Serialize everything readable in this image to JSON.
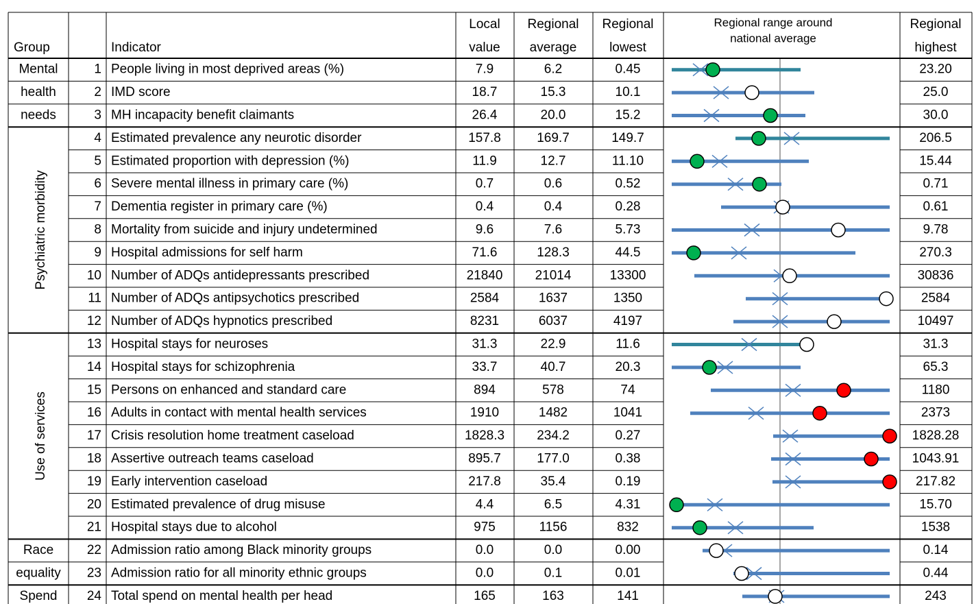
{
  "header": {
    "group": "Group",
    "indicator": "Indicator",
    "local_value": [
      "Local",
      "value"
    ],
    "regional_average": [
      "Regional",
      "average"
    ],
    "regional_lowest": [
      "Regional",
      "lowest"
    ],
    "chart": [
      "Regional range around",
      "national average"
    ],
    "regional_highest": [
      "Regional",
      "highest"
    ]
  },
  "groups": [
    [
      "Mental",
      "health",
      "needs"
    ],
    [
      "Psychiatric morbidity"
    ],
    [
      "Use of services"
    ],
    [
      "Race",
      "equality"
    ],
    [
      "Spend"
    ]
  ],
  "rows": [
    [
      "1",
      "People living in most deprived areas (%)",
      "7.9",
      "6.2",
      "0.45",
      "23.20"
    ],
    [
      "2",
      "IMD score",
      "18.7",
      "15.3",
      "10.1",
      "25.0"
    ],
    [
      "3",
      "MH incapacity benefit claimants",
      "26.4",
      "20.0",
      "15.2",
      "30.0"
    ],
    [
      "4",
      "Estimated prevalence any neurotic disorder",
      "157.8",
      "169.7",
      "149.7",
      "206.5"
    ],
    [
      "5",
      "Estimated proportion with depression (%)",
      "11.9",
      "12.7",
      "11.10",
      "15.44"
    ],
    [
      "6",
      "Severe mental illness in primary care (%)",
      "0.7",
      "0.6",
      "0.52",
      "0.71"
    ],
    [
      "7",
      "Dementia register in primary care (%)",
      "0.4",
      "0.4",
      "0.28",
      "0.61"
    ],
    [
      "8",
      "Mortality from suicide and injury undetermined",
      "9.6",
      "7.6",
      "5.73",
      "9.78"
    ],
    [
      "9",
      "Hospital admissions for self harm",
      "71.6",
      "128.3",
      "44.5",
      "270.3"
    ],
    [
      "10",
      "Number of ADQs antidepressants prescribed",
      "21840",
      "21014",
      "13300",
      "30836"
    ],
    [
      "11",
      "Number of ADQs antipsychotics prescribed",
      "2584",
      "1637",
      "1350",
      "2584"
    ],
    [
      "12",
      "Number of ADQs hypnotics prescribed",
      "8231",
      "6037",
      "4197",
      "10497"
    ],
    [
      "13",
      "Hospital stays for neuroses",
      "31.3",
      "22.9",
      "11.6",
      "31.3"
    ],
    [
      "14",
      "Hospital stays for schizophrenia",
      "33.7",
      "40.7",
      "20.3",
      "65.3"
    ],
    [
      "15",
      "Persons on enhanced and standard care",
      "894",
      "578",
      "74",
      "1180"
    ],
    [
      "16",
      "Adults in contact with mental health services",
      "1910",
      "1482",
      "1041",
      "2373"
    ],
    [
      "17",
      "Crisis resolution home treatment caseload",
      "1828.3",
      "234.2",
      "0.27",
      "1828.28"
    ],
    [
      "18",
      "Assertive outreach teams caseload",
      "895.7",
      "177.0",
      "0.38",
      "1043.91"
    ],
    [
      "19",
      "Early intervention caseload",
      "217.8",
      "35.4",
      "0.19",
      "217.82"
    ],
    [
      "20",
      "Estimated prevalence of drug misuse",
      "4.4",
      "6.5",
      "4.31",
      "15.70"
    ],
    [
      "21",
      "Hospital stays due to alcohol",
      "975",
      "1156",
      "832",
      "1538"
    ],
    [
      "22",
      "Admission ratio among Black minority groups",
      "0.0",
      "0.0",
      "0.00",
      "0.14"
    ],
    [
      "23",
      "Admission ratio for all minority ethnic groups",
      "0.0",
      "0.1",
      "0.01",
      "0.44"
    ],
    [
      "24",
      "Total spend on mental health per head",
      "165",
      "163",
      "141",
      "243"
    ]
  ]
}
